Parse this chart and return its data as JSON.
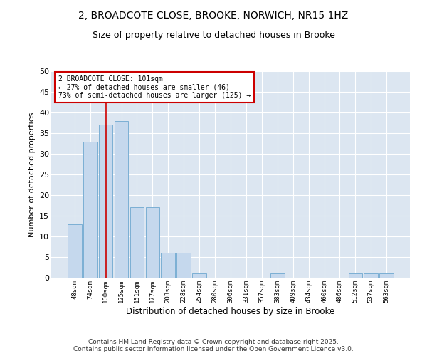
{
  "title_line1": "2, BROADCOTE CLOSE, BROOKE, NORWICH, NR15 1HZ",
  "title_line2": "Size of property relative to detached houses in Brooke",
  "xlabel": "Distribution of detached houses by size in Brooke",
  "ylabel": "Number of detached properties",
  "categories": [
    "48sqm",
    "74sqm",
    "100sqm",
    "125sqm",
    "151sqm",
    "177sqm",
    "203sqm",
    "228sqm",
    "254sqm",
    "280sqm",
    "306sqm",
    "331sqm",
    "357sqm",
    "383sqm",
    "409sqm",
    "434sqm",
    "460sqm",
    "486sqm",
    "512sqm",
    "537sqm",
    "563sqm"
  ],
  "values": [
    13,
    33,
    37,
    38,
    17,
    17,
    6,
    6,
    1,
    0,
    0,
    0,
    0,
    1,
    0,
    0,
    0,
    0,
    1,
    1,
    1
  ],
  "bar_color": "#c5d8ed",
  "bar_edge_color": "#7bafd4",
  "vline_x": 2,
  "vline_color": "#cc0000",
  "annotation_text": "2 BROADCOTE CLOSE: 101sqm\n← 27% of detached houses are smaller (46)\n73% of semi-detached houses are larger (125) →",
  "annotation_box_facecolor": "#ffffff",
  "annotation_box_edge": "#cc0000",
  "ylim": [
    0,
    50
  ],
  "yticks": [
    0,
    5,
    10,
    15,
    20,
    25,
    30,
    35,
    40,
    45,
    50
  ],
  "fig_bg_color": "#ffffff",
  "plot_bg_color": "#dce6f1",
  "grid_color": "#ffffff",
  "footer_line1": "Contains HM Land Registry data © Crown copyright and database right 2025.",
  "footer_line2": "Contains public sector information licensed under the Open Government Licence v3.0."
}
